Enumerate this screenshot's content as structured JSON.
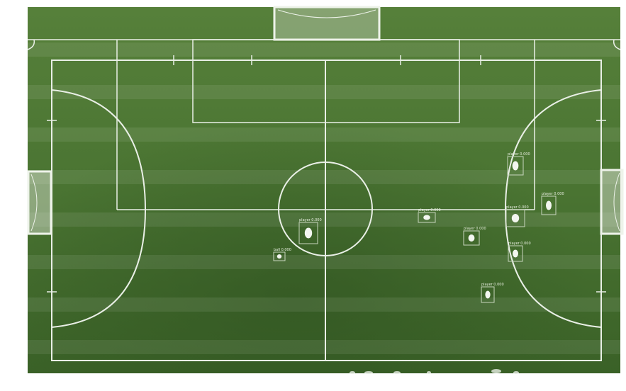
{
  "image": {
    "subject": "aerial-football-pitch-with-player-detections",
    "colors": {
      "grass_light": "#4f7a35",
      "grass_mid": "#426a2c",
      "grass_dark": "#355a22",
      "lines": "#e9efe6",
      "box": "#c9d6bf"
    }
  },
  "detections": [
    {
      "label": "player 0.000",
      "kind": "player"
    },
    {
      "label": "ball 0.000",
      "kind": "ball"
    },
    {
      "label": "player 0.000",
      "kind": "player"
    },
    {
      "label": "player 0.000",
      "kind": "player"
    },
    {
      "label": "player 0.000",
      "kind": "player"
    },
    {
      "label": "player 0.000",
      "kind": "player"
    },
    {
      "label": "player 0.000",
      "kind": "player"
    },
    {
      "label": "player 0.000",
      "kind": "player"
    },
    {
      "label": "player 0.000",
      "kind": "player"
    }
  ]
}
